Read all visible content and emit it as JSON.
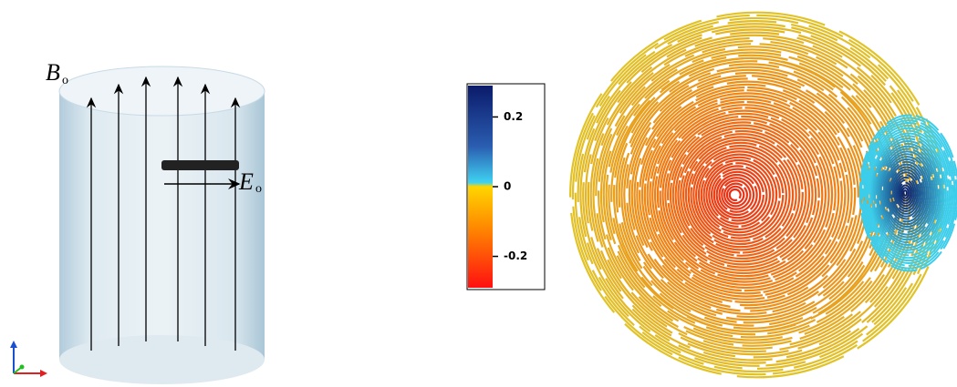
{
  "labels": {
    "b_field": "B",
    "b_sub": "o",
    "e_field": "E",
    "e_sub": "o"
  },
  "colorbar": {
    "lim": [
      -0.29,
      0.29
    ],
    "ticks": [
      0.2,
      0,
      -0.2
    ]
  }
}
